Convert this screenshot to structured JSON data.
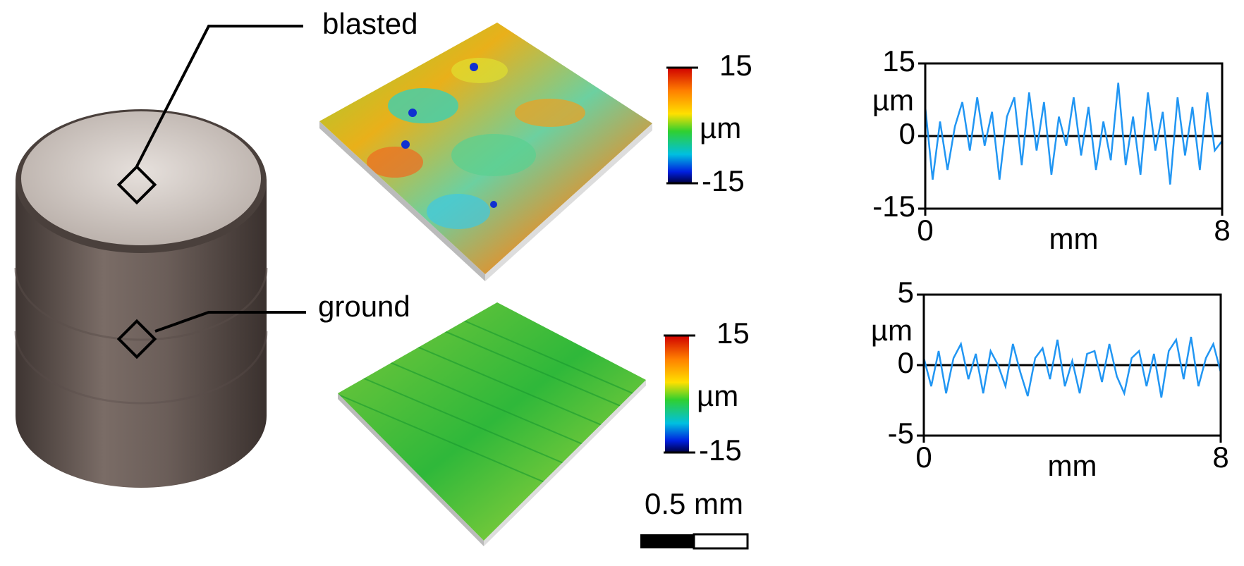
{
  "figure": {
    "photo_labels": {
      "blasted": "blasted",
      "ground": "ground"
    },
    "colorbars": [
      {
        "max": "15",
        "unit": "µm",
        "min": "-15"
      },
      {
        "max": "15",
        "unit": "µm",
        "min": "-15"
      }
    ],
    "scale_bar": "0.5 mm"
  },
  "chart_data": [
    {
      "type": "line",
      "xlabel": "mm",
      "ylabel": "µm",
      "x": [
        0,
        0.2,
        0.4,
        0.6,
        0.8,
        1,
        1.2,
        1.4,
        1.6,
        1.8,
        2,
        2.2,
        2.4,
        2.6,
        2.8,
        3,
        3.2,
        3.4,
        3.6,
        3.8,
        4,
        4.2,
        4.4,
        4.6,
        4.8,
        5,
        5.2,
        5.4,
        5.6,
        5.8,
        6,
        6.2,
        6.4,
        6.6,
        6.8,
        7,
        7.2,
        7.4,
        7.6,
        7.8,
        8
      ],
      "values": [
        6,
        -9,
        3,
        -7,
        2,
        7,
        -3,
        8,
        -2,
        5,
        -9,
        4,
        8,
        -6,
        9,
        -3,
        7,
        -8,
        4,
        -2,
        8,
        -4,
        6,
        -7,
        3,
        -5,
        11,
        -6,
        4,
        -8,
        9,
        -3,
        5,
        -10,
        8,
        -4,
        6,
        -7,
        9,
        -3,
        -1
      ],
      "color": "#2196f3",
      "xlim": [
        0,
        8
      ],
      "xticks": [
        0,
        8
      ],
      "ylim": [
        -15,
        15
      ],
      "yticks": [
        -15,
        0,
        15
      ],
      "zero_line": true
    },
    {
      "type": "line",
      "xlabel": "mm",
      "ylabel": "µm",
      "x": [
        0,
        0.2,
        0.4,
        0.6,
        0.8,
        1,
        1.2,
        1.4,
        1.6,
        1.8,
        2,
        2.2,
        2.4,
        2.6,
        2.8,
        3,
        3.2,
        3.4,
        3.6,
        3.8,
        4,
        4.2,
        4.4,
        4.6,
        4.8,
        5,
        5.2,
        5.4,
        5.6,
        5.8,
        6,
        6.2,
        6.4,
        6.6,
        6.8,
        7,
        7.2,
        7.4,
        7.6,
        7.8,
        8
      ],
      "values": [
        0.5,
        -1.5,
        1,
        -2,
        0.5,
        1.5,
        -1,
        0.8,
        -2,
        1,
        0,
        -1.5,
        1.5,
        -0.5,
        -2.2,
        0.5,
        1.2,
        -1,
        1.8,
        -1.5,
        0.3,
        -2,
        0.8,
        1,
        -1.2,
        1.5,
        -0.8,
        -2,
        0.5,
        1,
        -1.5,
        0.8,
        -2.3,
        1,
        1.8,
        -1,
        2,
        -1.5,
        0.5,
        1.5,
        -0.5
      ],
      "color": "#2196f3",
      "xlim": [
        0,
        8
      ],
      "xticks": [
        0,
        8
      ],
      "ylim": [
        -5,
        5
      ],
      "yticks": [
        -5,
        0,
        5
      ],
      "zero_line": true
    }
  ]
}
